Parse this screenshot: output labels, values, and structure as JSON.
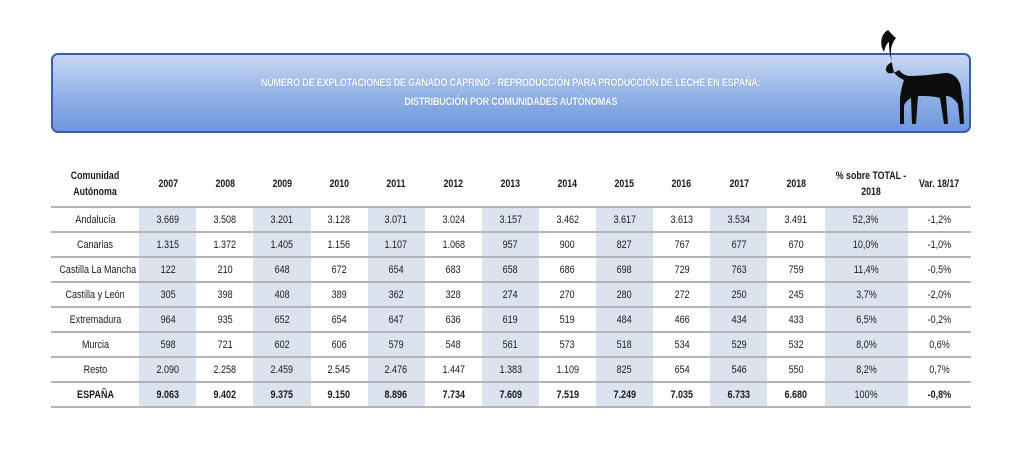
{
  "title": {
    "line1": "NÚMERO DE EXPLOTACIONES DE GANADO CAPRINO - REPRODUCCIÓN PARA PRODUCCIÓN DE LECHE EN ESPAÑA:",
    "line2": "DISTRIBUCIÓN POR COMUNIDADES AUTÓNOMAS"
  },
  "logo_icon": "goat-silhouette-icon",
  "table": {
    "headers": [
      "Comunidad Autónoma",
      "2007",
      "2008",
      "2009",
      "2010",
      "2011",
      "2012",
      "2013",
      "2014",
      "2015",
      "2016",
      "2017",
      "2018",
      "% sobre TOTAL - 2018",
      "Var. 18/17"
    ],
    "rows": [
      [
        "Andalucía",
        "3.669",
        "3.508",
        "3.201",
        "3.128",
        "3.071",
        "3.024",
        "3.157",
        "3.462",
        "3.617",
        "3.613",
        "3.534",
        "3.491",
        "52,3%",
        "-1,2%"
      ],
      [
        "Canarias",
        "1.315",
        "1.372",
        "1.405",
        "1.156",
        "1.107",
        "1.068",
        "957",
        "900",
        "827",
        "767",
        "677",
        "670",
        "10,0%",
        "-1,0%"
      ],
      [
        "Castilla La Mancha",
        "122",
        "210",
        "648",
        "672",
        "654",
        "683",
        "658",
        "686",
        "698",
        "729",
        "763",
        "759",
        "11,4%",
        "-0,5%"
      ],
      [
        "Castilla y León",
        "305",
        "398",
        "408",
        "389",
        "362",
        "328",
        "274",
        "270",
        "280",
        "272",
        "250",
        "245",
        "3,7%",
        "-2,0%"
      ],
      [
        "Extremadura",
        "964",
        "935",
        "652",
        "654",
        "647",
        "636",
        "619",
        "519",
        "484",
        "466",
        "434",
        "433",
        "6,5%",
        "-0,2%"
      ],
      [
        "Murcia",
        "598",
        "721",
        "602",
        "606",
        "579",
        "548",
        "561",
        "573",
        "518",
        "534",
        "529",
        "532",
        "8,0%",
        "0,6%"
      ],
      [
        "Resto",
        "2.090",
        "2.258",
        "2.459",
        "2.545",
        "2.476",
        "1.447",
        "1.383",
        "1.109",
        "825",
        "654",
        "546",
        "550",
        "8,2%",
        "0,7%"
      ]
    ],
    "total": [
      "ESPAÑA",
      "9.063",
      "9.402",
      "9.375",
      "9.150",
      "8.896",
      "7.734",
      "7.609",
      "7.519",
      "7.249",
      "7.035",
      "6.733",
      "6.680",
      "100%",
      "-0,8%"
    ]
  },
  "colors": {
    "banner_border": "#3a5fa8",
    "banner_fill": "#8fb0e6",
    "cell_shade": "#dbe3ef",
    "rule": "#b4b4b4"
  }
}
